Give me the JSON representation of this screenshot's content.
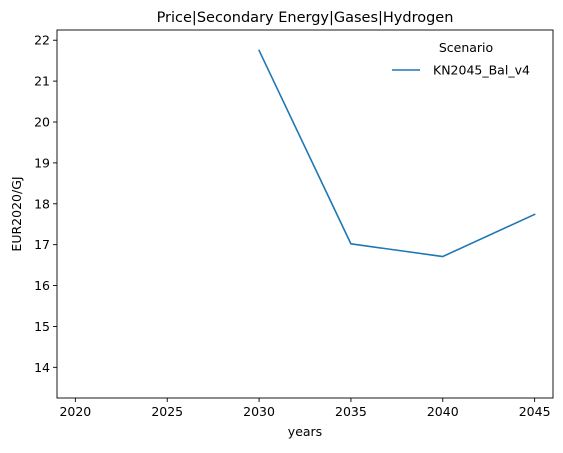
{
  "chart_data": {
    "type": "line",
    "title": "Price|Secondary Energy|Gases|Hydrogen",
    "xlabel": "years",
    "ylabel": "EUR2020/GJ",
    "xlim": [
      2019,
      2046
    ],
    "ylim": [
      13.25,
      22.25
    ],
    "xticks": [
      2020,
      2025,
      2030,
      2035,
      2040,
      2045
    ],
    "yticks": [
      14,
      15,
      16,
      17,
      18,
      19,
      20,
      21,
      22
    ],
    "grid": false,
    "legend": {
      "title": "Scenario",
      "placement": "upper-right"
    },
    "series": [
      {
        "name": "KN2045_Bal_v4",
        "color": "#1f77b4",
        "x": [
          2030,
          2035,
          2040,
          2045
        ],
        "y": [
          21.75,
          17.02,
          16.71,
          17.74
        ]
      }
    ]
  }
}
